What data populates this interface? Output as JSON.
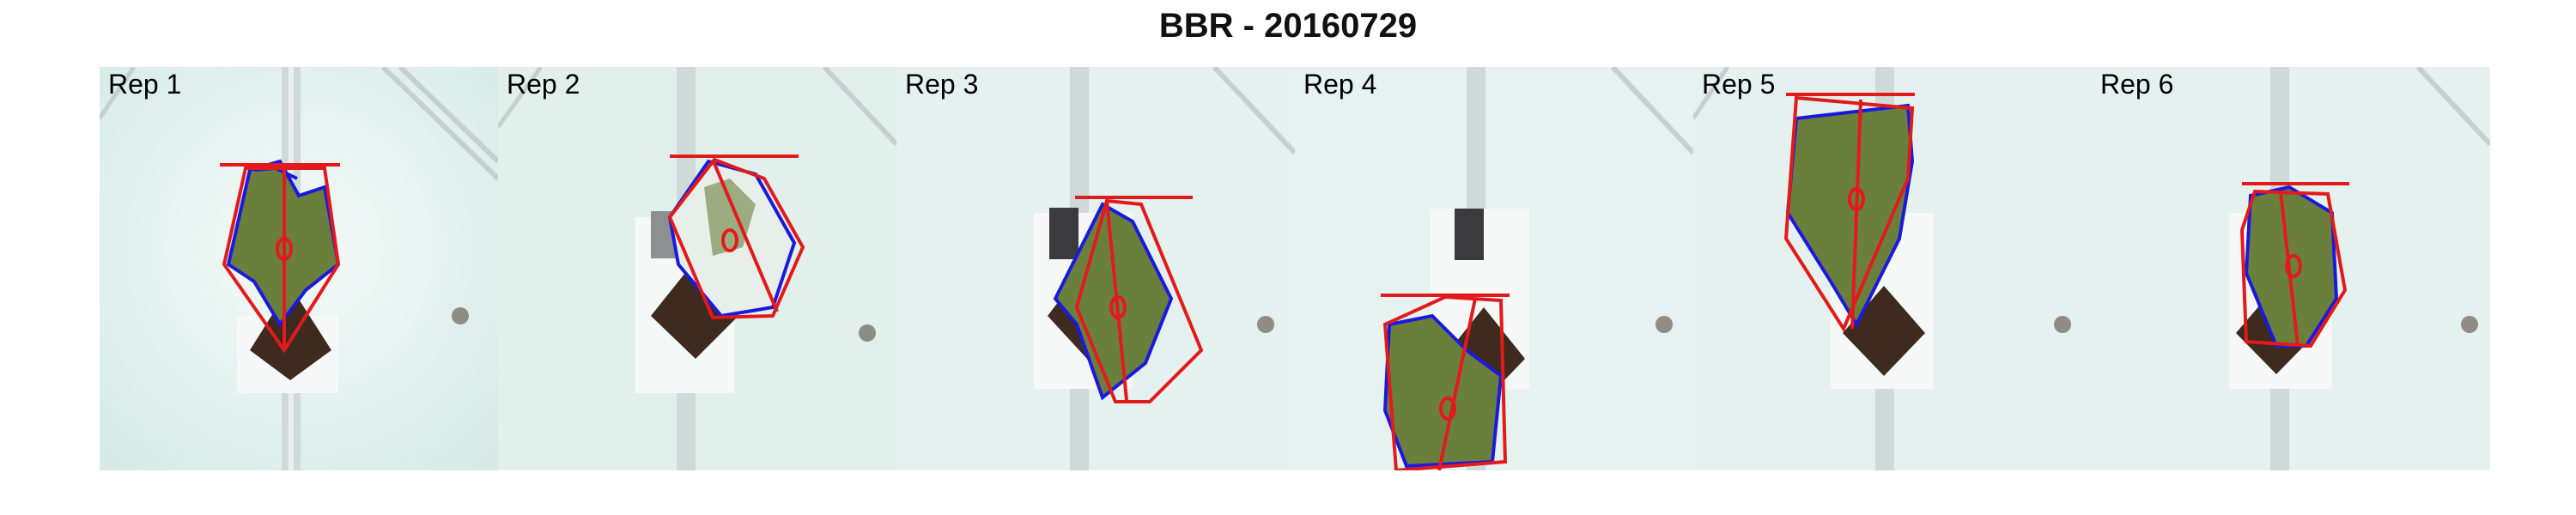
{
  "figure": {
    "title": "BBR - 20160729"
  },
  "panels": [
    {
      "label": "Rep 1"
    },
    {
      "label": "Rep 2"
    },
    {
      "label": "Rep 3"
    },
    {
      "label": "Rep 4"
    },
    {
      "label": "Rep 5"
    },
    {
      "label": "Rep 6"
    }
  ],
  "colors": {
    "background": "#e4f1ee",
    "hull_outline": "#e31a1c",
    "leaf_contour": "#1a1adf",
    "leaf_fill": "#6b7f3c",
    "soil": "#3e2a1e",
    "rail": "#c9d6d4",
    "pot_holder": "#f4f7f6"
  }
}
